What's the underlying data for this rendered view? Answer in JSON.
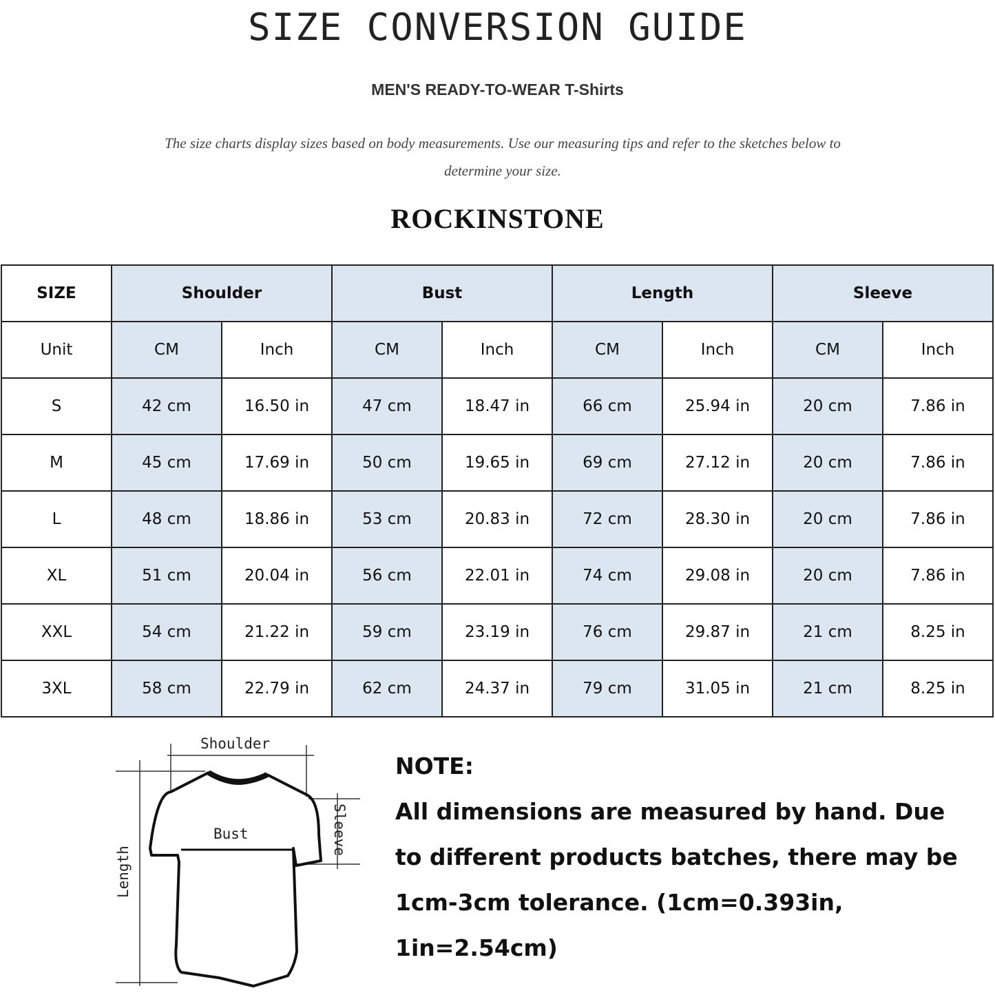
{
  "title": "SIZE CONVERSION GUIDE",
  "subtitle": "MEN'S READY-TO-WEAR T-Shirts",
  "description": "The size charts display sizes based on body measurements. Use our measuring tips and refer to the sketches below to determine your size.",
  "watermark": "ROCKINSTONE",
  "brand": "ROCKINSTONE",
  "colors": {
    "header_blue": "#dce6f1",
    "border": "#222222"
  },
  "table": {
    "size_label": "SIZE",
    "groups": [
      "Shoulder",
      "Bust",
      "Length",
      "Sleeve"
    ],
    "unit_label": "Unit",
    "units": [
      "CM",
      "Inch"
    ],
    "rows": [
      {
        "size": "S",
        "values": [
          "42 cm",
          "16.50 in",
          "47 cm",
          "18.47  in",
          "66 cm",
          "25.94  in",
          "20 cm",
          "7.86  in"
        ]
      },
      {
        "size": "M",
        "values": [
          "45 cm",
          "17.69  in",
          "50 cm",
          "19.65  in",
          "69 cm",
          "27.12  in",
          "20 cm",
          "7.86  in"
        ]
      },
      {
        "size": "L",
        "values": [
          "48 cm",
          "18.86  in",
          "53 cm",
          "20.83  in",
          "72 cm",
          "28.30  in",
          "20 cm",
          "7.86  in"
        ]
      },
      {
        "size": "XL",
        "values": [
          "51 cm",
          "20.04  in",
          "56 cm",
          "22.01  in",
          "74 cm",
          "29.08  in",
          "20 cm",
          "7.86  in"
        ]
      },
      {
        "size": "XXL",
        "values": [
          "54 cm",
          "21.22  in",
          "59 cm",
          "23.19  in",
          "76 cm",
          "29.87  in",
          "21 cm",
          "8.25  in"
        ]
      },
      {
        "size": "3XL",
        "values": [
          "58 cm",
          "22.79  in",
          "62 cm",
          "24.37  in",
          "79 cm",
          "31.05  in",
          "21 cm",
          "8.25  in"
        ]
      }
    ]
  },
  "diagram": {
    "shoulder": "Shoulder",
    "bust": "Bust",
    "sleeve": "Sleeve",
    "length": "Length"
  },
  "note": {
    "heading": "NOTE:",
    "text": "All dimensions are measured by hand. Due to different products batches, there may be 1cm-3cm tolerance. (1cm=0.393in, 1in=2.54cm)"
  }
}
